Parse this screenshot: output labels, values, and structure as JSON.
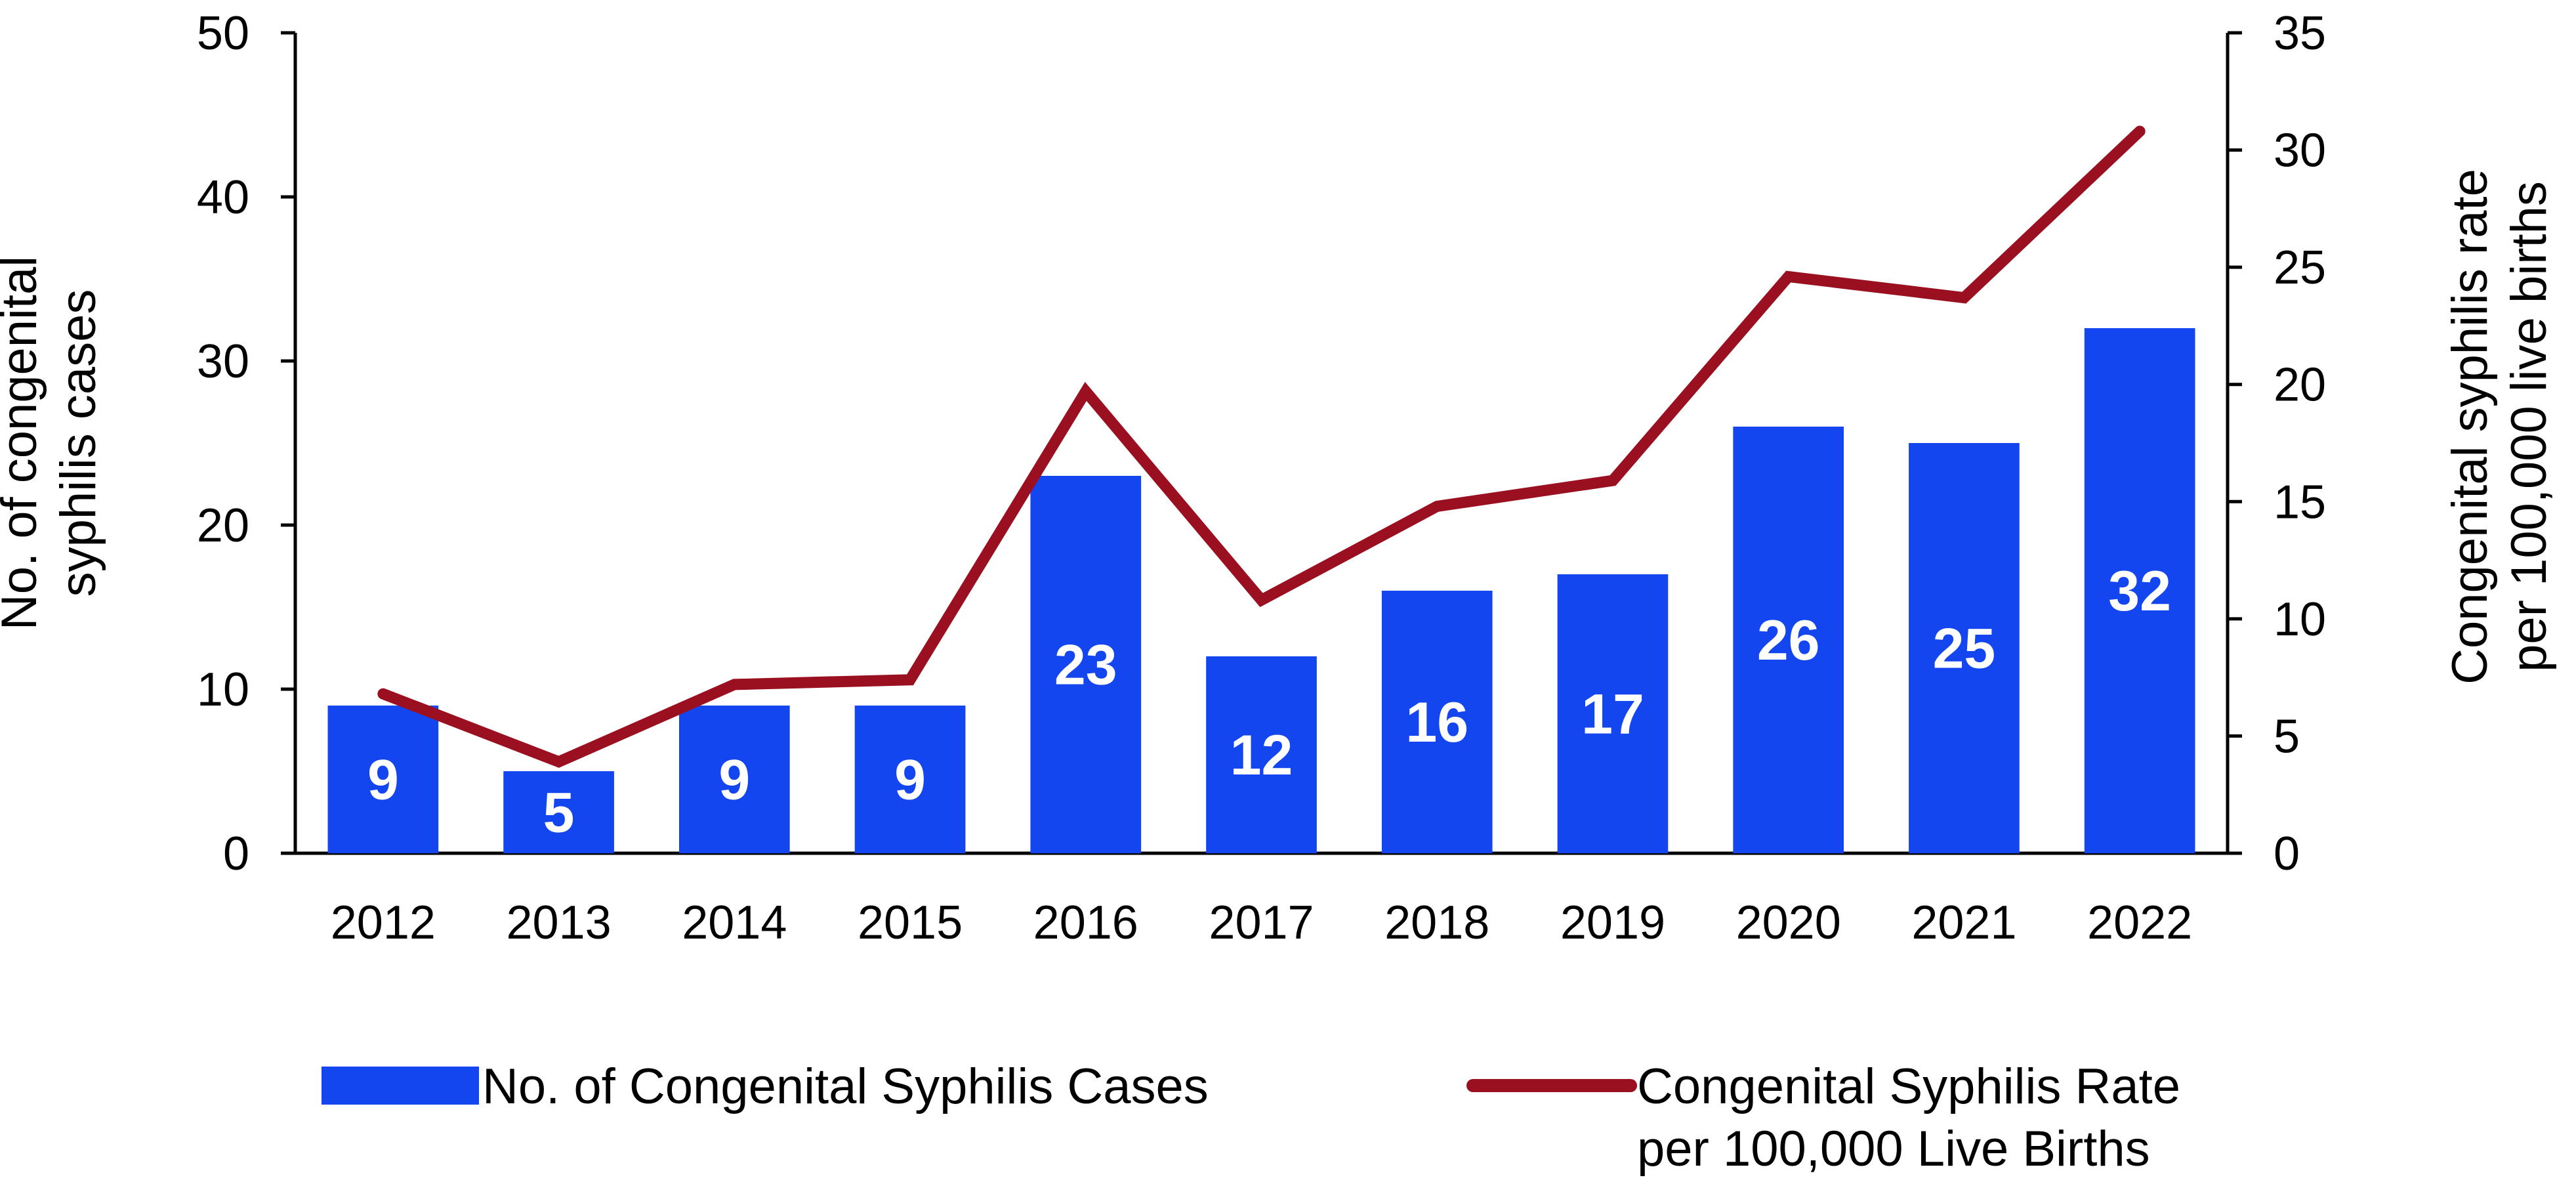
{
  "chart_data": {
    "type": "bar",
    "categories": [
      "2012",
      "2013",
      "2014",
      "2015",
      "2016",
      "2017",
      "2018",
      "2019",
      "2020",
      "2021",
      "2022"
    ],
    "series": [
      {
        "name": "No. of Congenital Syphilis Cases",
        "type": "bar",
        "axis": "left",
        "color": "#1446f0",
        "values": [
          9,
          5,
          9,
          9,
          23,
          12,
          16,
          17,
          26,
          25,
          32
        ],
        "labels": [
          "9",
          "5",
          "9",
          "9",
          "23",
          "12",
          "16",
          "17",
          "26",
          "25",
          "32"
        ]
      },
      {
        "name": "Congenital Syphilis Rate per 100,000 Live Births",
        "type": "line",
        "axis": "right",
        "color": "#9b1020",
        "values": [
          6.8,
          3.9,
          7.2,
          7.4,
          19.7,
          10.8,
          14.8,
          15.9,
          24.6,
          23.7,
          30.8
        ]
      }
    ],
    "y_left": {
      "label_lines": [
        "No. of congenital",
        "syphilis cases"
      ],
      "ylim": [
        0,
        50
      ],
      "ticks": [
        "0",
        "10",
        "20",
        "30",
        "40",
        "50"
      ]
    },
    "y_right": {
      "label_lines": [
        "Congenital syphilis rate",
        "per 100,000 live births"
      ],
      "ylim": [
        0,
        35
      ],
      "ticks": [
        "0",
        "5",
        "10",
        "15",
        "20",
        "25",
        "30",
        "35"
      ]
    },
    "legend": {
      "position": "bottom",
      "bar_label": "No. of Congenital Syphilis Cases",
      "line_label_lines": [
        "Congenital Syphilis Rate",
        "per 100,000 Live Births"
      ]
    },
    "grid": false
  }
}
